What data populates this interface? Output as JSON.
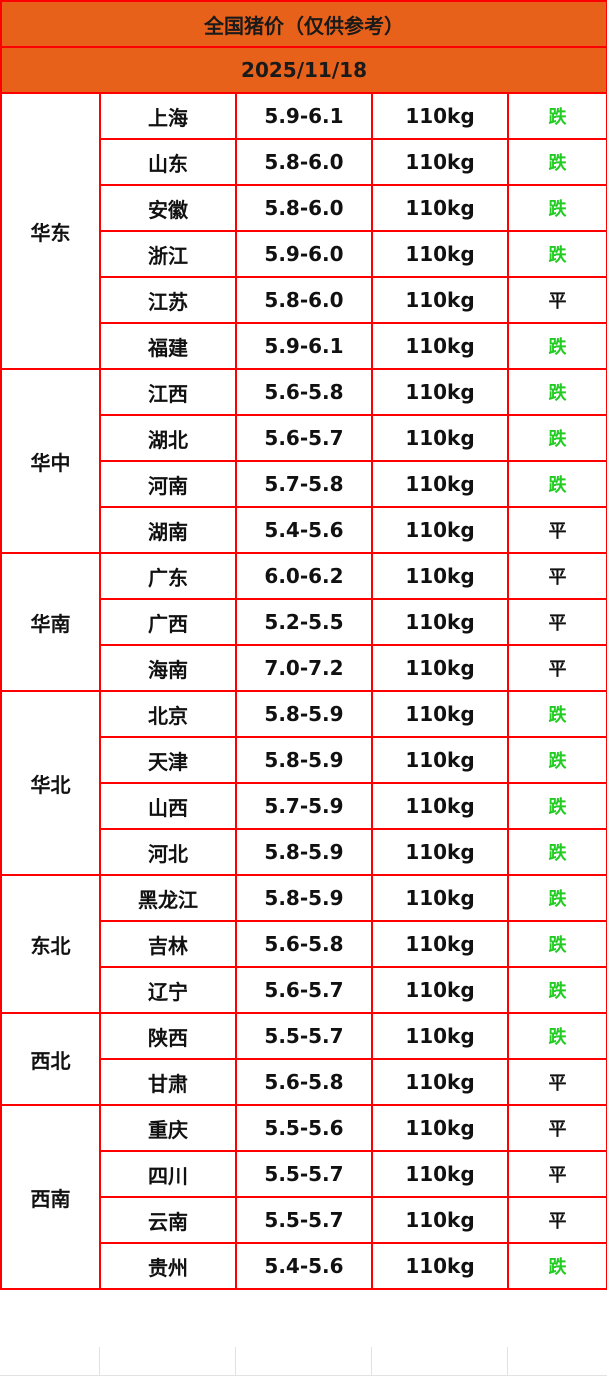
{
  "title": "全国猪价（仅供参考）",
  "date": "2025/11/18",
  "colors": {
    "header_bg": "#e8611a",
    "border": "#ff0000",
    "down": "#22cc22",
    "flat": "#111111"
  },
  "regions": [
    {
      "name": "华东",
      "rows": [
        {
          "province": "上海",
          "price": "5.9-6.1",
          "weight": "110kg",
          "trend": "跌"
        },
        {
          "province": "山东",
          "price": "5.8-6.0",
          "weight": "110kg",
          "trend": "跌"
        },
        {
          "province": "安徽",
          "price": "5.8-6.0",
          "weight": "110kg",
          "trend": "跌"
        },
        {
          "province": "浙江",
          "price": "5.9-6.0",
          "weight": "110kg",
          "trend": "跌"
        },
        {
          "province": "江苏",
          "price": "5.8-6.0",
          "weight": "110kg",
          "trend": "平"
        },
        {
          "province": "福建",
          "price": "5.9-6.1",
          "weight": "110kg",
          "trend": "跌"
        }
      ]
    },
    {
      "name": "华中",
      "rows": [
        {
          "province": "江西",
          "price": "5.6-5.8",
          "weight": "110kg",
          "trend": "跌"
        },
        {
          "province": "湖北",
          "price": "5.6-5.7",
          "weight": "110kg",
          "trend": "跌"
        },
        {
          "province": "河南",
          "price": "5.7-5.8",
          "weight": "110kg",
          "trend": "跌"
        },
        {
          "province": "湖南",
          "price": "5.4-5.6",
          "weight": "110kg",
          "trend": "平"
        }
      ]
    },
    {
      "name": "华南",
      "rows": [
        {
          "province": "广东",
          "price": "6.0-6.2",
          "weight": "110kg",
          "trend": "平"
        },
        {
          "province": "广西",
          "price": "5.2-5.5",
          "weight": "110kg",
          "trend": "平"
        },
        {
          "province": "海南",
          "price": "7.0-7.2",
          "weight": "110kg",
          "trend": "平"
        }
      ]
    },
    {
      "name": "华北",
      "rows": [
        {
          "province": "北京",
          "price": "5.8-5.9",
          "weight": "110kg",
          "trend": "跌"
        },
        {
          "province": "天津",
          "price": "5.8-5.9",
          "weight": "110kg",
          "trend": "跌"
        },
        {
          "province": "山西",
          "price": "5.7-5.9",
          "weight": "110kg",
          "trend": "跌"
        },
        {
          "province": "河北",
          "price": "5.8-5.9",
          "weight": "110kg",
          "trend": "跌"
        }
      ]
    },
    {
      "name": "东北",
      "rows": [
        {
          "province": "黑龙江",
          "price": "5.8-5.9",
          "weight": "110kg",
          "trend": "跌"
        },
        {
          "province": "吉林",
          "price": "5.6-5.8",
          "weight": "110kg",
          "trend": "跌"
        },
        {
          "province": "辽宁",
          "price": "5.6-5.7",
          "weight": "110kg",
          "trend": "跌"
        }
      ]
    },
    {
      "name": "西北",
      "rows": [
        {
          "province": "陕西",
          "price": "5.5-5.7",
          "weight": "110kg",
          "trend": "跌"
        },
        {
          "province": "甘肃",
          "price": "5.6-5.8",
          "weight": "110kg",
          "trend": "平"
        }
      ]
    },
    {
      "name": "西南",
      "rows": [
        {
          "province": "重庆",
          "price": "5.5-5.6",
          "weight": "110kg",
          "trend": "平"
        },
        {
          "province": "四川",
          "price": "5.5-5.7",
          "weight": "110kg",
          "trend": "平"
        },
        {
          "province": "云南",
          "price": "5.5-5.7",
          "weight": "110kg",
          "trend": "平"
        },
        {
          "province": "贵州",
          "price": "5.4-5.6",
          "weight": "110kg",
          "trend": "跌"
        }
      ]
    }
  ]
}
